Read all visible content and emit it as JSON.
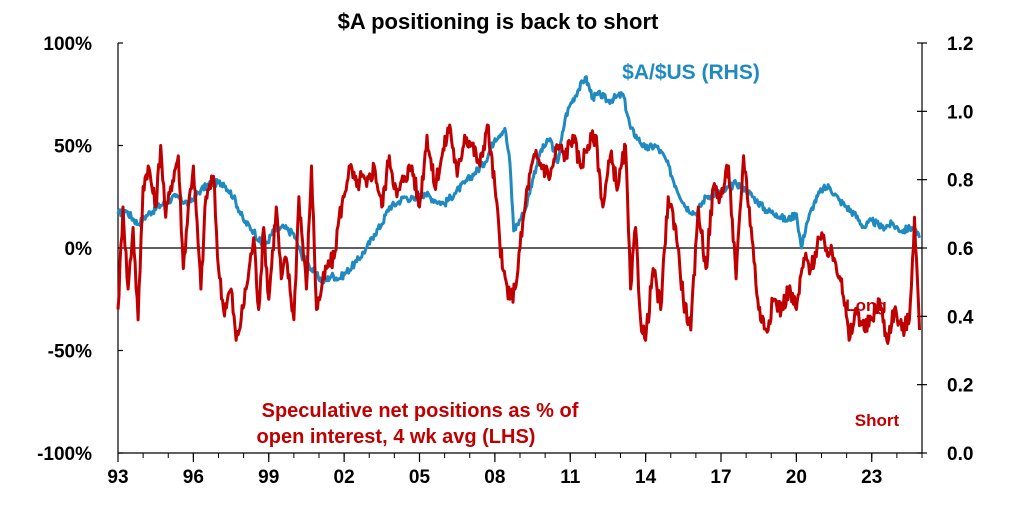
{
  "chart_data": {
    "type": "line",
    "title": "$A positioning is back to short",
    "x_tick_labels": [
      "93",
      "96",
      "99",
      "02",
      "05",
      "08",
      "11",
      "14",
      "17",
      "20",
      "23"
    ],
    "x_tick_years": [
      1993,
      1996,
      1999,
      2002,
      2005,
      2008,
      2011,
      2014,
      2017,
      2020,
      2023
    ],
    "xlim": [
      1993,
      2025
    ],
    "left_axis": {
      "tick_labels": [
        "100%",
        "50%",
        "0%",
        "-50%",
        "-100%"
      ],
      "tick_values": [
        100,
        50,
        0,
        -50,
        -100
      ],
      "ylim": [
        -100,
        100
      ]
    },
    "right_axis": {
      "tick_labels": [
        "1.2",
        "1.0",
        "0.8",
        "0.6",
        "0.4",
        "0.2",
        "0.0"
      ],
      "tick_values": [
        1.2,
        1.0,
        0.8,
        0.6,
        0.4,
        0.2,
        0.0
      ],
      "ylim": [
        0.0,
        1.2
      ]
    },
    "series": [
      {
        "name": "$A/$US (RHS)",
        "axis": "right",
        "color": "#1f8ac0",
        "x": [
          1993.0,
          1993.3,
          1993.8,
          1994.2,
          1994.8,
          1995.3,
          1995.8,
          1996.3,
          1996.7,
          1997.2,
          1997.6,
          1998.0,
          1998.4,
          1998.8,
          1999.2,
          1999.6,
          2000.0,
          2000.3,
          2000.6,
          2000.9,
          2001.2,
          2001.5,
          2001.8,
          2002.1,
          2002.5,
          2002.9,
          2003.2,
          2003.5,
          2003.8,
          2004.1,
          2004.4,
          2004.8,
          2005.2,
          2005.6,
          2006.0,
          2006.4,
          2006.8,
          2007.2,
          2007.6,
          2008.0,
          2008.4,
          2008.6,
          2008.75,
          2008.9,
          2009.2,
          2009.5,
          2009.8,
          2010.2,
          2010.5,
          2010.8,
          2011.0,
          2011.3,
          2011.6,
          2011.9,
          2012.2,
          2012.5,
          2012.8,
          2013.1,
          2013.4,
          2013.7,
          2014.0,
          2014.4,
          2014.8,
          2015.2,
          2015.6,
          2016.0,
          2016.4,
          2016.8,
          2017.2,
          2017.6,
          2018.0,
          2018.4,
          2018.8,
          2019.2,
          2019.6,
          2020.0,
          2020.2,
          2020.4,
          2020.7,
          2021.0,
          2021.3,
          2021.7,
          2022.0,
          2022.3,
          2022.7,
          2023.0,
          2023.4,
          2023.8,
          2024.2,
          2024.6,
          2024.9
        ],
        "y": [
          0.7,
          0.71,
          0.67,
          0.7,
          0.73,
          0.75,
          0.73,
          0.77,
          0.79,
          0.79,
          0.75,
          0.68,
          0.65,
          0.6,
          0.65,
          0.66,
          0.64,
          0.58,
          0.55,
          0.52,
          0.5,
          0.52,
          0.51,
          0.53,
          0.56,
          0.6,
          0.64,
          0.67,
          0.72,
          0.73,
          0.75,
          0.74,
          0.76,
          0.74,
          0.73,
          0.76,
          0.79,
          0.82,
          0.85,
          0.92,
          0.95,
          0.85,
          0.65,
          0.67,
          0.71,
          0.8,
          0.88,
          0.92,
          0.85,
          0.98,
          1.02,
          1.06,
          1.1,
          1.04,
          1.05,
          1.03,
          1.04,
          1.05,
          0.95,
          0.92,
          0.89,
          0.9,
          0.86,
          0.78,
          0.72,
          0.7,
          0.75,
          0.76,
          0.77,
          0.79,
          0.77,
          0.74,
          0.71,
          0.7,
          0.68,
          0.7,
          0.6,
          0.67,
          0.73,
          0.77,
          0.78,
          0.74,
          0.72,
          0.7,
          0.66,
          0.68,
          0.66,
          0.67,
          0.65,
          0.66,
          0.63
        ]
      },
      {
        "name": "Speculative net positions as % of open interest, 4 wk avg (LHS)",
        "axis": "left",
        "color": "#c00000",
        "x": [
          1993.0,
          1993.2,
          1993.4,
          1993.6,
          1993.8,
          1994.0,
          1994.2,
          1994.5,
          1994.7,
          1994.9,
          1995.1,
          1995.4,
          1995.6,
          1995.8,
          1996.0,
          1996.3,
          1996.5,
          1996.8,
          1997.0,
          1997.2,
          1997.5,
          1997.7,
          1997.9,
          1998.1,
          1998.4,
          1998.6,
          1998.8,
          1999.0,
          1999.3,
          1999.5,
          1999.7,
          2000.0,
          2000.2,
          2000.5,
          2000.7,
          2000.9,
          2001.1,
          2001.3,
          2001.6,
          2001.8,
          2002.0,
          2002.2,
          2002.5,
          2002.7,
          2002.9,
          2003.2,
          2003.5,
          2003.8,
          2004.1,
          2004.4,
          2004.7,
          2005.0,
          2005.3,
          2005.6,
          2005.9,
          2006.2,
          2006.5,
          2006.8,
          2007.1,
          2007.4,
          2007.7,
          2008.0,
          2008.3,
          2008.6,
          2008.8,
          2009.0,
          2009.3,
          2009.6,
          2009.9,
          2010.2,
          2010.5,
          2010.8,
          2011.1,
          2011.4,
          2011.7,
          2012.0,
          2012.3,
          2012.6,
          2012.9,
          2013.2,
          2013.4,
          2013.6,
          2013.8,
          2014.0,
          2014.3,
          2014.6,
          2014.9,
          2015.2,
          2015.5,
          2015.8,
          2016.1,
          2016.4,
          2016.7,
          2017.0,
          2017.3,
          2017.6,
          2017.9,
          2018.2,
          2018.5,
          2018.8,
          2019.1,
          2019.4,
          2019.7,
          2020.0,
          2020.3,
          2020.6,
          2020.9,
          2021.2,
          2021.5,
          2021.8,
          2022.1,
          2022.4,
          2022.7,
          2023.0,
          2023.3,
          2023.6,
          2023.9,
          2024.2,
          2024.5,
          2024.7,
          2024.9
        ],
        "y": [
          -30,
          20,
          -20,
          10,
          -35,
          30,
          40,
          20,
          50,
          15,
          30,
          45,
          -10,
          20,
          40,
          -20,
          25,
          35,
          -10,
          -30,
          -20,
          -45,
          -35,
          -20,
          5,
          -30,
          10,
          -25,
          20,
          -15,
          -5,
          -35,
          25,
          -20,
          40,
          -30,
          -20,
          -10,
          -5,
          15,
          25,
          40,
          30,
          35,
          30,
          40,
          20,
          45,
          25,
          35,
          40,
          20,
          55,
          30,
          45,
          60,
          35,
          55,
          50,
          40,
          60,
          30,
          -10,
          -25,
          -20,
          0,
          30,
          45,
          40,
          35,
          50,
          45,
          55,
          40,
          50,
          55,
          20,
          45,
          30,
          50,
          -20,
          10,
          -35,
          -45,
          -10,
          -30,
          25,
          10,
          -25,
          -40,
          20,
          -10,
          30,
          25,
          40,
          -15,
          45,
          10,
          -30,
          -40,
          -25,
          -30,
          -20,
          -30,
          -5,
          -10,
          5,
          0,
          -5,
          -15,
          -45,
          -30,
          -40,
          -35,
          -25,
          -45,
          -30,
          -40,
          -35,
          15,
          -40
        ]
      }
    ],
    "annotations": {
      "rhs_series_label": "$A/$US (RHS)",
      "lhs_series_label_line1": "Speculative net positions as % of",
      "lhs_series_label_line2": "open interest, 4 wk avg (LHS)",
      "long_label": "Long",
      "short_label": "Short"
    },
    "grid": false,
    "zero_line": true
  }
}
